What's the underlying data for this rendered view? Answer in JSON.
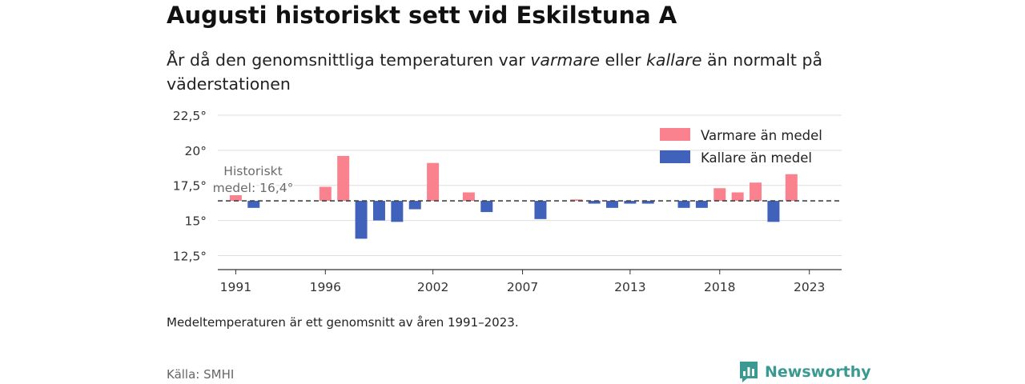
{
  "title": "Augusti historiskt sett vid Eskilstuna A",
  "subtitle": {
    "part1": "År då den genomsnittliga temperaturen var ",
    "warm_word": "varmare",
    "part2": " eller ",
    "cold_word": "kallare",
    "part3": " än normalt på väderstationen"
  },
  "note": "Medeltemperaturen är ett genomsnitt av åren 1991–2023.",
  "source": "Källa: SMHI",
  "brand": "Newsworthy",
  "colors": {
    "warm": "#f9828e",
    "cold": "#4062bb",
    "grid": "#dddddd",
    "axis": "#333333",
    "mean_line": "#444444",
    "brand": "#3a9a91"
  },
  "chart_data": {
    "type": "bar",
    "mean": 16.4,
    "mean_label_line1": "Historiskt",
    "mean_label_line2": "medel: 16,4°",
    "ylim": [
      11.5,
      23.3
    ],
    "yticks": [
      12.5,
      15,
      17.5,
      20,
      22.5
    ],
    "ytick_labels": [
      "12,5°",
      "15°",
      "17,5°",
      "20°",
      "22,5°"
    ],
    "xlim": [
      1990.0,
      2024.8
    ],
    "xticks": [
      1991,
      1996,
      2002,
      2007,
      2013,
      2018,
      2023
    ],
    "xtick_labels": [
      "1991",
      "1996",
      "2002",
      "2007",
      "2013",
      "2018",
      "2023"
    ],
    "legend": {
      "position": "top-right",
      "warm_label": "Varmare än medel",
      "cold_label": "Kallare än medel"
    },
    "grid": true,
    "series": [
      {
        "year": 1991,
        "value": 16.8
      },
      {
        "year": 1992,
        "value": 15.9
      },
      {
        "year": 1996,
        "value": 17.4
      },
      {
        "year": 1997,
        "value": 19.6
      },
      {
        "year": 1998,
        "value": 13.7
      },
      {
        "year": 1999,
        "value": 15.0
      },
      {
        "year": 2000,
        "value": 14.9
      },
      {
        "year": 2001,
        "value": 15.8
      },
      {
        "year": 2002,
        "value": 19.1
      },
      {
        "year": 2004,
        "value": 17.0
      },
      {
        "year": 2005,
        "value": 15.6
      },
      {
        "year": 2008,
        "value": 15.1
      },
      {
        "year": 2010,
        "value": 16.5
      },
      {
        "year": 2011,
        "value": 16.2
      },
      {
        "year": 2012,
        "value": 15.9
      },
      {
        "year": 2013,
        "value": 16.2
      },
      {
        "year": 2014,
        "value": 16.2
      },
      {
        "year": 2016,
        "value": 15.9
      },
      {
        "year": 2017,
        "value": 15.9
      },
      {
        "year": 2018,
        "value": 17.3
      },
      {
        "year": 2019,
        "value": 17.0
      },
      {
        "year": 2020,
        "value": 17.7
      },
      {
        "year": 2021,
        "value": 14.9
      },
      {
        "year": 2022,
        "value": 18.3
      }
    ]
  }
}
